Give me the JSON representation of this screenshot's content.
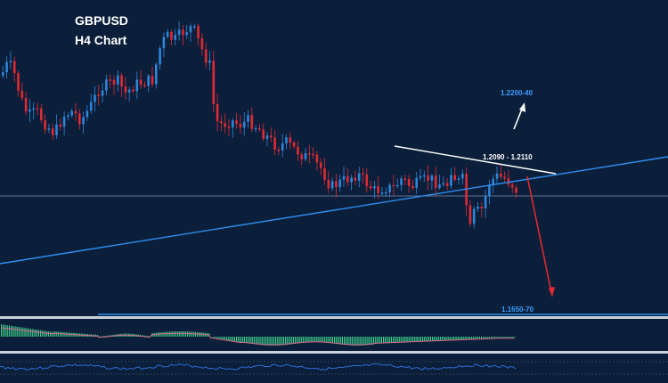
{
  "chart": {
    "symbol": "GBPUSD",
    "timeframe": "H4 Chart"
  },
  "colors": {
    "background": "#0b1e3a",
    "bull_candle": "#2f86d8",
    "bear_candle": "#e02a32",
    "support_line": "#2e8ff0",
    "resistance_line": "#ffffff",
    "up_arrow": "#ffffff",
    "down_arrow": "#e02a32",
    "target_label": "#3a9cff",
    "histogram": "#3fd08a",
    "oscillator": "#2e6fd8"
  },
  "annotations": {
    "upper_target": "1.2200-40",
    "resistance_zone": "1.2090 - 1.2110",
    "lower_target": "1.1650-70"
  },
  "icons": [
    "up-arrow-icon",
    "down-arrow-icon"
  ]
}
